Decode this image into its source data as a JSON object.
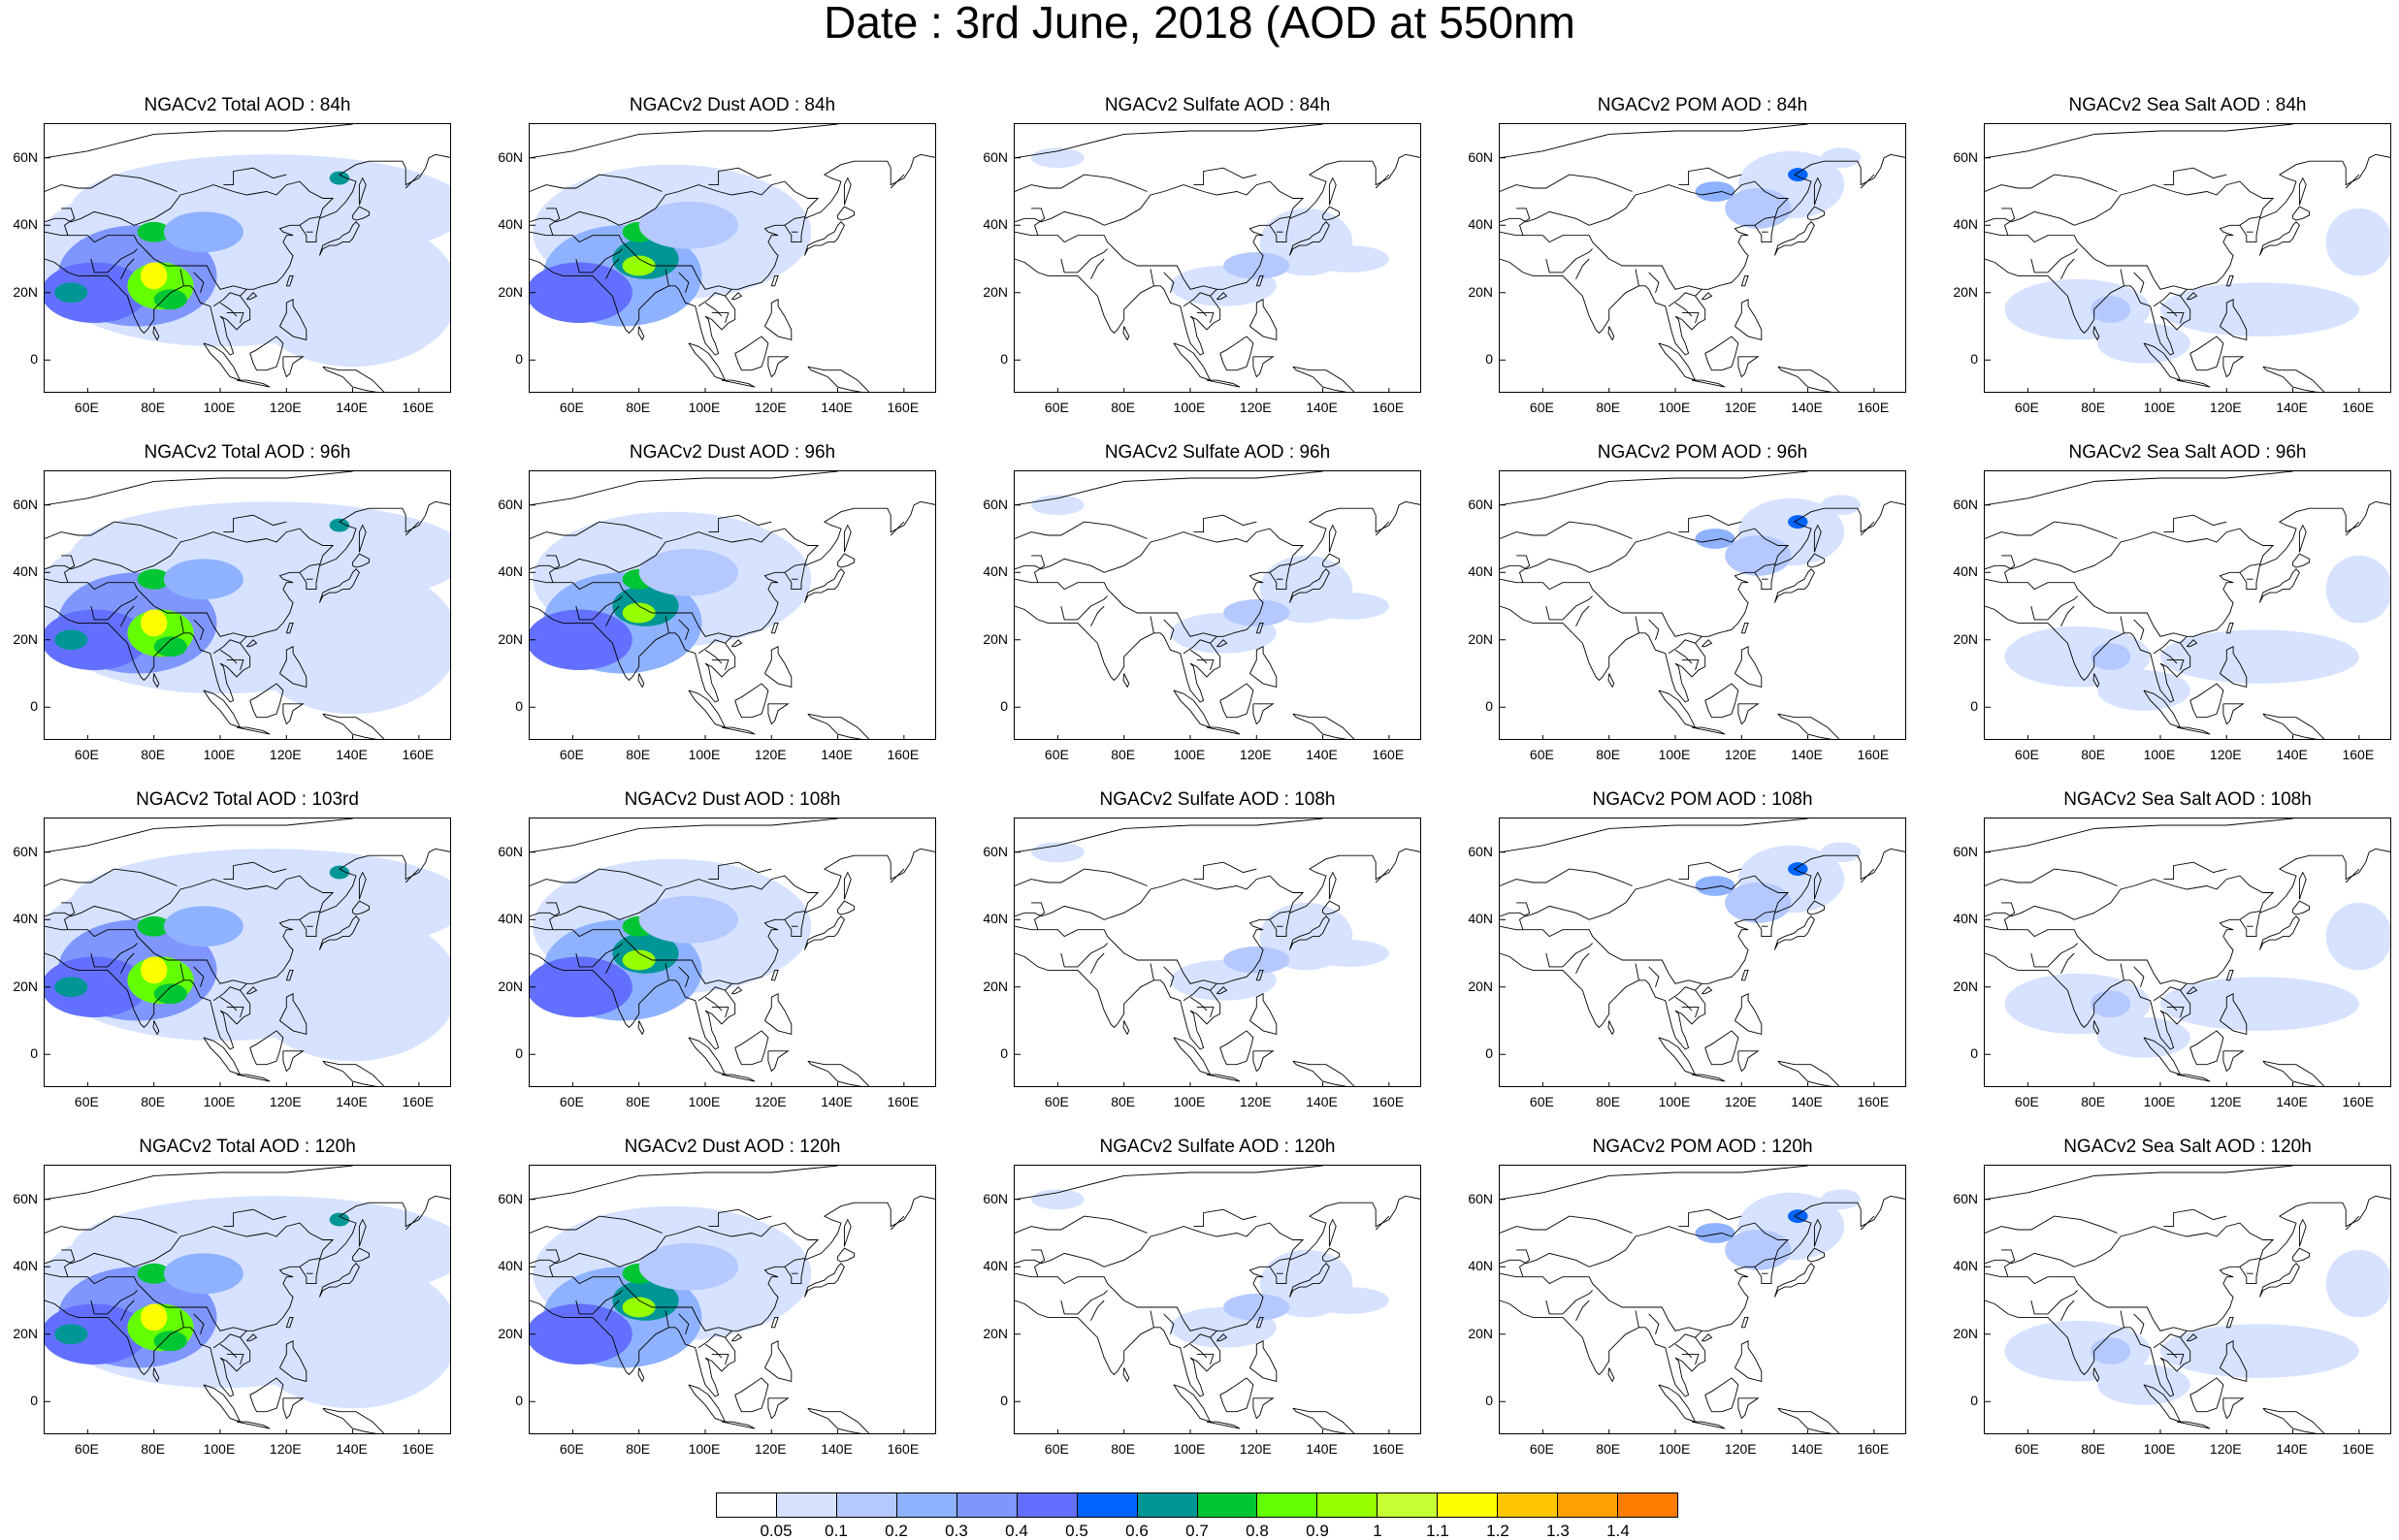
{
  "title": "Date : 3rd June, 2018 (AOD at 550nm",
  "map": {
    "x_ticks": [
      "60E",
      "80E",
      "100E",
      "120E",
      "140E",
      "160E"
    ],
    "y_ticks": [
      "60N",
      "40N",
      "20N",
      "0"
    ],
    "panels": [
      {
        "title": "NGACv2 Total AOD : 84h",
        "species": "total"
      },
      {
        "title": "NGACv2 Dust AOD : 84h",
        "species": "dust"
      },
      {
        "title": "NGACv2 Sulfate AOD : 84h",
        "species": "sulfate"
      },
      {
        "title": "NGACv2 POM AOD : 84h",
        "species": "pom"
      },
      {
        "title": "NGACv2 Sea Salt AOD : 84h",
        "species": "seasalt"
      },
      {
        "title": "NGACv2 Total AOD : 96h",
        "species": "total"
      },
      {
        "title": "NGACv2 Dust AOD : 96h",
        "species": "dust"
      },
      {
        "title": "NGACv2 Sulfate AOD : 96h",
        "species": "sulfate"
      },
      {
        "title": "NGACv2 POM AOD : 96h",
        "species": "pom"
      },
      {
        "title": "NGACv2 Sea Salt AOD : 96h",
        "species": "seasalt"
      },
      {
        "title": "NGACv2 Total AOD : 103rd",
        "species": "total"
      },
      {
        "title": "NGACv2 Dust AOD : 108h",
        "species": "dust"
      },
      {
        "title": "NGACv2 Sulfate AOD : 108h",
        "species": "sulfate"
      },
      {
        "title": "NGACv2 POM AOD : 108h",
        "species": "pom"
      },
      {
        "title": "NGACv2 Sea Salt AOD : 108h",
        "species": "seasalt"
      },
      {
        "title": "NGACv2 Total AOD : 120h",
        "species": "total"
      },
      {
        "title": "NGACv2 Dust AOD : 120h",
        "species": "dust"
      },
      {
        "title": "NGACv2 Sulfate AOD : 120h",
        "species": "sulfate"
      },
      {
        "title": "NGACv2 POM AOD : 120h",
        "species": "pom"
      },
      {
        "title": "NGACv2 Sea Salt  AOD : 120h",
        "species": "seasalt"
      }
    ]
  },
  "colorbar": {
    "labels": [
      "0.05",
      "0.1",
      "0.2",
      "0.3",
      "0.4",
      "0.5",
      "0.6",
      "0.7",
      "0.8",
      "0.9",
      "1",
      "1.1",
      "1.2",
      "1.3",
      "1.4"
    ],
    "colors": [
      "#ffffff",
      "#d6e2ff",
      "#b5c9ff",
      "#8eb2ff",
      "#7f96ff",
      "#6370ff",
      "#0063ff",
      "#009696",
      "#00c633",
      "#63ff00",
      "#96ff00",
      "#c6ff33",
      "#ffff00",
      "#ffc600",
      "#ffa000",
      "#ff7c00",
      "#ff1900"
    ]
  }
}
